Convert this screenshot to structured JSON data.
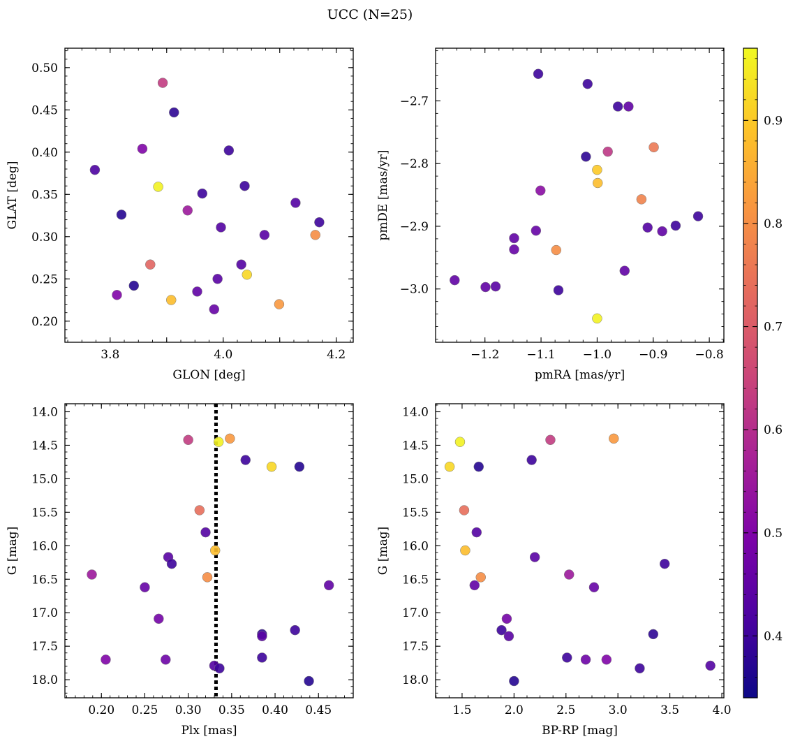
{
  "chart_data": {
    "title": "UCC (N=25)",
    "type": "scatter",
    "colormap": "plasma",
    "colorbar": {
      "range": [
        0.34,
        0.97
      ],
      "ticks": [
        0.4,
        0.5,
        0.6,
        0.7,
        0.8,
        0.9
      ],
      "tick_labels": [
        "0.4",
        "0.5",
        "0.6",
        "0.7",
        "0.8",
        "0.9"
      ]
    },
    "panels": [
      {
        "id": "glon-glat",
        "xlabel": "GLON [deg]",
        "ylabel": "GLAT [deg]",
        "xlim": [
          3.72,
          4.23
        ],
        "ylim": [
          0.175,
          0.523
        ],
        "y_inverted": false,
        "xticks": [
          3.8,
          3.9,
          4.0,
          4.1,
          4.2
        ],
        "xtick_labels": [
          "3.8",
          "",
          "4.0",
          "",
          "4.2"
        ],
        "yticks": [
          0.2,
          0.25,
          0.3,
          0.35,
          0.4,
          0.45,
          0.5
        ],
        "ytick_labels": [
          "0.20",
          "0.25",
          "0.30",
          "0.35",
          "0.40",
          "0.45",
          "0.50"
        ],
        "points": [
          {
            "x": 3.893,
            "y": 0.482,
            "c": 0.63
          },
          {
            "x": 3.913,
            "y": 0.447,
            "c": 0.38
          },
          {
            "x": 3.857,
            "y": 0.404,
            "c": 0.5
          },
          {
            "x": 4.01,
            "y": 0.402,
            "c": 0.4
          },
          {
            "x": 3.773,
            "y": 0.379,
            "c": 0.42
          },
          {
            "x": 3.885,
            "y": 0.359,
            "c": 0.96
          },
          {
            "x": 3.963,
            "y": 0.351,
            "c": 0.4
          },
          {
            "x": 4.038,
            "y": 0.36,
            "c": 0.4
          },
          {
            "x": 3.82,
            "y": 0.326,
            "c": 0.37
          },
          {
            "x": 3.937,
            "y": 0.331,
            "c": 0.55
          },
          {
            "x": 4.128,
            "y": 0.34,
            "c": 0.43
          },
          {
            "x": 4.17,
            "y": 0.317,
            "c": 0.4
          },
          {
            "x": 3.996,
            "y": 0.311,
            "c": 0.43
          },
          {
            "x": 4.073,
            "y": 0.302,
            "c": 0.44
          },
          {
            "x": 4.163,
            "y": 0.302,
            "c": 0.8
          },
          {
            "x": 3.871,
            "y": 0.267,
            "c": 0.72
          },
          {
            "x": 4.032,
            "y": 0.267,
            "c": 0.43
          },
          {
            "x": 3.842,
            "y": 0.242,
            "c": 0.37
          },
          {
            "x": 4.042,
            "y": 0.255,
            "c": 0.92
          },
          {
            "x": 3.99,
            "y": 0.25,
            "c": 0.44
          },
          {
            "x": 3.812,
            "y": 0.231,
            "c": 0.5
          },
          {
            "x": 3.954,
            "y": 0.235,
            "c": 0.45
          },
          {
            "x": 3.908,
            "y": 0.225,
            "c": 0.88
          },
          {
            "x": 4.099,
            "y": 0.22,
            "c": 0.82
          },
          {
            "x": 3.984,
            "y": 0.214,
            "c": 0.46
          }
        ]
      },
      {
        "id": "pmra-pmde",
        "xlabel": "pmRA [mas/yr]",
        "ylabel": "pmDE [mas/yr]",
        "xlim": [
          -1.288,
          -0.774
        ],
        "ylim": [
          -3.085,
          -2.616
        ],
        "y_inverted": false,
        "xticks": [
          -1.2,
          -1.1,
          -1.0,
          -0.9,
          -0.8
        ],
        "xtick_labels": [
          "−1.2",
          "−1.1",
          "−1.0",
          "−0.9",
          "−0.8"
        ],
        "yticks": [
          -3.0,
          -2.9,
          -2.8,
          -2.7
        ],
        "ytick_labels": [
          "−3.0",
          "−2.9",
          "−2.8",
          "−2.7"
        ],
        "points": [
          {
            "x": -1.105,
            "y": -2.657,
            "c": 0.4
          },
          {
            "x": -1.017,
            "y": -2.673,
            "c": 0.4
          },
          {
            "x": -0.963,
            "y": -2.709,
            "c": 0.4
          },
          {
            "x": -0.944,
            "y": -2.709,
            "c": 0.45
          },
          {
            "x": -1.02,
            "y": -2.789,
            "c": 0.38
          },
          {
            "x": -0.981,
            "y": -2.781,
            "c": 0.62
          },
          {
            "x": -0.899,
            "y": -2.774,
            "c": 0.76
          },
          {
            "x": -1.0,
            "y": -2.81,
            "c": 0.9
          },
          {
            "x": -0.999,
            "y": -2.831,
            "c": 0.88
          },
          {
            "x": -1.101,
            "y": -2.843,
            "c": 0.52
          },
          {
            "x": -0.921,
            "y": -2.857,
            "c": 0.78
          },
          {
            "x": -0.82,
            "y": -2.884,
            "c": 0.4
          },
          {
            "x": -0.91,
            "y": -2.902,
            "c": 0.43
          },
          {
            "x": -0.86,
            "y": -2.899,
            "c": 0.4
          },
          {
            "x": -0.884,
            "y": -2.908,
            "c": 0.45
          },
          {
            "x": -1.109,
            "y": -2.907,
            "c": 0.46
          },
          {
            "x": -1.148,
            "y": -2.919,
            "c": 0.45
          },
          {
            "x": -1.148,
            "y": -2.937,
            "c": 0.46
          },
          {
            "x": -1.073,
            "y": -2.938,
            "c": 0.8
          },
          {
            "x": -0.951,
            "y": -2.971,
            "c": 0.45
          },
          {
            "x": -1.254,
            "y": -2.986,
            "c": 0.45
          },
          {
            "x": -1.199,
            "y": -2.997,
            "c": 0.45
          },
          {
            "x": -1.181,
            "y": -2.996,
            "c": 0.44
          },
          {
            "x": -1.069,
            "y": -3.002,
            "c": 0.4
          },
          {
            "x": -1.0,
            "y": -3.047,
            "c": 0.96
          }
        ]
      },
      {
        "id": "plx-g",
        "xlabel": "Plx [mas]",
        "ylabel": "G [mag]",
        "xlim": [
          0.158,
          0.49
        ],
        "ylim": [
          13.88,
          18.27
        ],
        "y_inverted": true,
        "xticks": [
          0.2,
          0.25,
          0.3,
          0.35,
          0.4,
          0.45
        ],
        "xtick_labels": [
          "0.20",
          "0.25",
          "0.30",
          "0.35",
          "0.40",
          "0.45"
        ],
        "yticks": [
          14.0,
          14.5,
          15.0,
          15.5,
          16.0,
          16.5,
          17.0,
          17.5,
          18.0
        ],
        "ytick_labels": [
          "14.0",
          "14.5",
          "15.0",
          "15.5",
          "16.0",
          "16.5",
          "17.0",
          "17.5",
          "18.0"
        ],
        "vline": {
          "x": 0.332,
          "style": "dotted",
          "color": "#000000"
        },
        "points": [
          {
            "x": 0.3,
            "y": 14.42,
            "c": 0.63
          },
          {
            "x": 0.335,
            "y": 14.45,
            "c": 0.96
          },
          {
            "x": 0.348,
            "y": 14.4,
            "c": 0.82
          },
          {
            "x": 0.366,
            "y": 14.72,
            "c": 0.4
          },
          {
            "x": 0.396,
            "y": 14.82,
            "c": 0.92
          },
          {
            "x": 0.428,
            "y": 14.82,
            "c": 0.37
          },
          {
            "x": 0.313,
            "y": 15.47,
            "c": 0.74
          },
          {
            "x": 0.32,
            "y": 15.8,
            "c": 0.43
          },
          {
            "x": 0.331,
            "y": 16.07,
            "c": 0.88
          },
          {
            "x": 0.277,
            "y": 16.17,
            "c": 0.44
          },
          {
            "x": 0.281,
            "y": 16.27,
            "c": 0.4
          },
          {
            "x": 0.322,
            "y": 16.47,
            "c": 0.8
          },
          {
            "x": 0.189,
            "y": 16.43,
            "c": 0.55
          },
          {
            "x": 0.25,
            "y": 16.62,
            "c": 0.46
          },
          {
            "x": 0.462,
            "y": 16.59,
            "c": 0.45
          },
          {
            "x": 0.266,
            "y": 17.09,
            "c": 0.48
          },
          {
            "x": 0.423,
            "y": 17.26,
            "c": 0.4
          },
          {
            "x": 0.385,
            "y": 17.32,
            "c": 0.38
          },
          {
            "x": 0.385,
            "y": 17.35,
            "c": 0.44
          },
          {
            "x": 0.205,
            "y": 17.7,
            "c": 0.5
          },
          {
            "x": 0.274,
            "y": 17.7,
            "c": 0.47
          },
          {
            "x": 0.385,
            "y": 17.67,
            "c": 0.4
          },
          {
            "x": 0.33,
            "y": 17.79,
            "c": 0.43
          },
          {
            "x": 0.336,
            "y": 17.83,
            "c": 0.4
          },
          {
            "x": 0.439,
            "y": 18.02,
            "c": 0.37
          }
        ]
      },
      {
        "id": "bprp-g",
        "xlabel": "BP-RP [mag]",
        "ylabel": "G [mag]",
        "xlim": [
          1.245,
          4.02
        ],
        "ylim": [
          13.88,
          18.27
        ],
        "y_inverted": true,
        "xticks": [
          1.5,
          2.0,
          2.5,
          3.0,
          3.5,
          4.0
        ],
        "xtick_labels": [
          "1.5",
          "2.0",
          "2.5",
          "3.0",
          "3.5",
          "4.0"
        ],
        "yticks": [
          14.0,
          14.5,
          15.0,
          15.5,
          16.0,
          16.5,
          17.0,
          17.5,
          18.0
        ],
        "ytick_labels": [
          "14.0",
          "14.5",
          "15.0",
          "15.5",
          "16.0",
          "16.5",
          "17.0",
          "17.5",
          "18.0"
        ],
        "points": [
          {
            "x": 1.48,
            "y": 14.45,
            "c": 0.96
          },
          {
            "x": 2.35,
            "y": 14.42,
            "c": 0.63
          },
          {
            "x": 2.96,
            "y": 14.4,
            "c": 0.82
          },
          {
            "x": 1.38,
            "y": 14.82,
            "c": 0.92
          },
          {
            "x": 1.66,
            "y": 14.82,
            "c": 0.37
          },
          {
            "x": 2.17,
            "y": 14.72,
            "c": 0.4
          },
          {
            "x": 1.52,
            "y": 15.47,
            "c": 0.74
          },
          {
            "x": 1.64,
            "y": 15.8,
            "c": 0.43
          },
          {
            "x": 1.53,
            "y": 16.07,
            "c": 0.88
          },
          {
            "x": 2.2,
            "y": 16.17,
            "c": 0.44
          },
          {
            "x": 3.45,
            "y": 16.27,
            "c": 0.4
          },
          {
            "x": 1.68,
            "y": 16.47,
            "c": 0.8
          },
          {
            "x": 2.53,
            "y": 16.43,
            "c": 0.55
          },
          {
            "x": 1.62,
            "y": 16.59,
            "c": 0.45
          },
          {
            "x": 2.77,
            "y": 16.62,
            "c": 0.46
          },
          {
            "x": 1.93,
            "y": 17.09,
            "c": 0.48
          },
          {
            "x": 1.88,
            "y": 17.26,
            "c": 0.4
          },
          {
            "x": 1.95,
            "y": 17.35,
            "c": 0.44
          },
          {
            "x": 3.34,
            "y": 17.32,
            "c": 0.38
          },
          {
            "x": 2.51,
            "y": 17.67,
            "c": 0.4
          },
          {
            "x": 2.89,
            "y": 17.7,
            "c": 0.5
          },
          {
            "x": 3.89,
            "y": 17.79,
            "c": 0.43
          },
          {
            "x": 3.21,
            "y": 17.83,
            "c": 0.4
          },
          {
            "x": 2.0,
            "y": 18.02,
            "c": 0.37
          },
          {
            "x": 2.69,
            "y": 17.7,
            "c": 0.47
          }
        ]
      }
    ]
  }
}
